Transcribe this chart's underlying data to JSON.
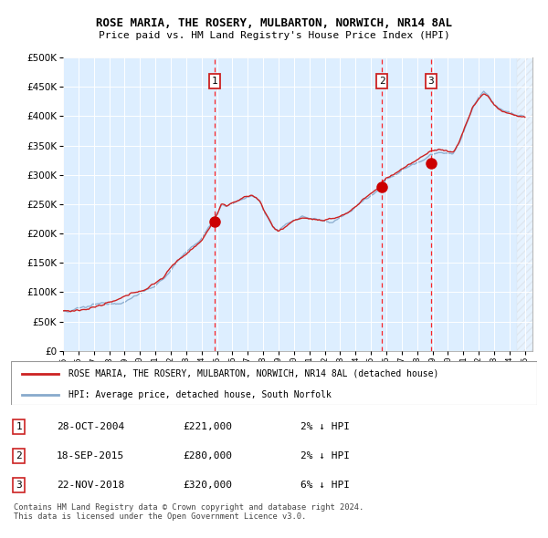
{
  "title": "ROSE MARIA, THE ROSERY, MULBARTON, NORWICH, NR14 8AL",
  "subtitle": "Price paid vs. HM Land Registry's House Price Index (HPI)",
  "background_color": "#ffffff",
  "plot_bg_color": "#ddeeff",
  "hpi_color": "#88aacc",
  "price_color": "#cc2222",
  "marker_color": "#cc0000",
  "ylim": [
    0,
    500000
  ],
  "yticks": [
    0,
    50000,
    100000,
    150000,
    200000,
    250000,
    300000,
    350000,
    400000,
    450000,
    500000
  ],
  "year_start": 1995,
  "year_end": 2025,
  "sales": [
    {
      "num": 1,
      "date": "28-OCT-2004",
      "price": 221000,
      "year": 2004.83,
      "pct": "2%",
      "dir": "↓"
    },
    {
      "num": 2,
      "date": "18-SEP-2015",
      "price": 280000,
      "year": 2015.71,
      "pct": "2%",
      "dir": "↓"
    },
    {
      "num": 3,
      "date": "22-NOV-2018",
      "price": 320000,
      "year": 2018.89,
      "pct": "6%",
      "dir": "↓"
    }
  ],
  "legend_label_red": "ROSE MARIA, THE ROSERY, MULBARTON, NORWICH, NR14 8AL (detached house)",
  "legend_label_blue": "HPI: Average price, detached house, South Norfolk",
  "footnote": "Contains HM Land Registry data © Crown copyright and database right 2024.\nThis data is licensed under the Open Government Licence v3.0."
}
